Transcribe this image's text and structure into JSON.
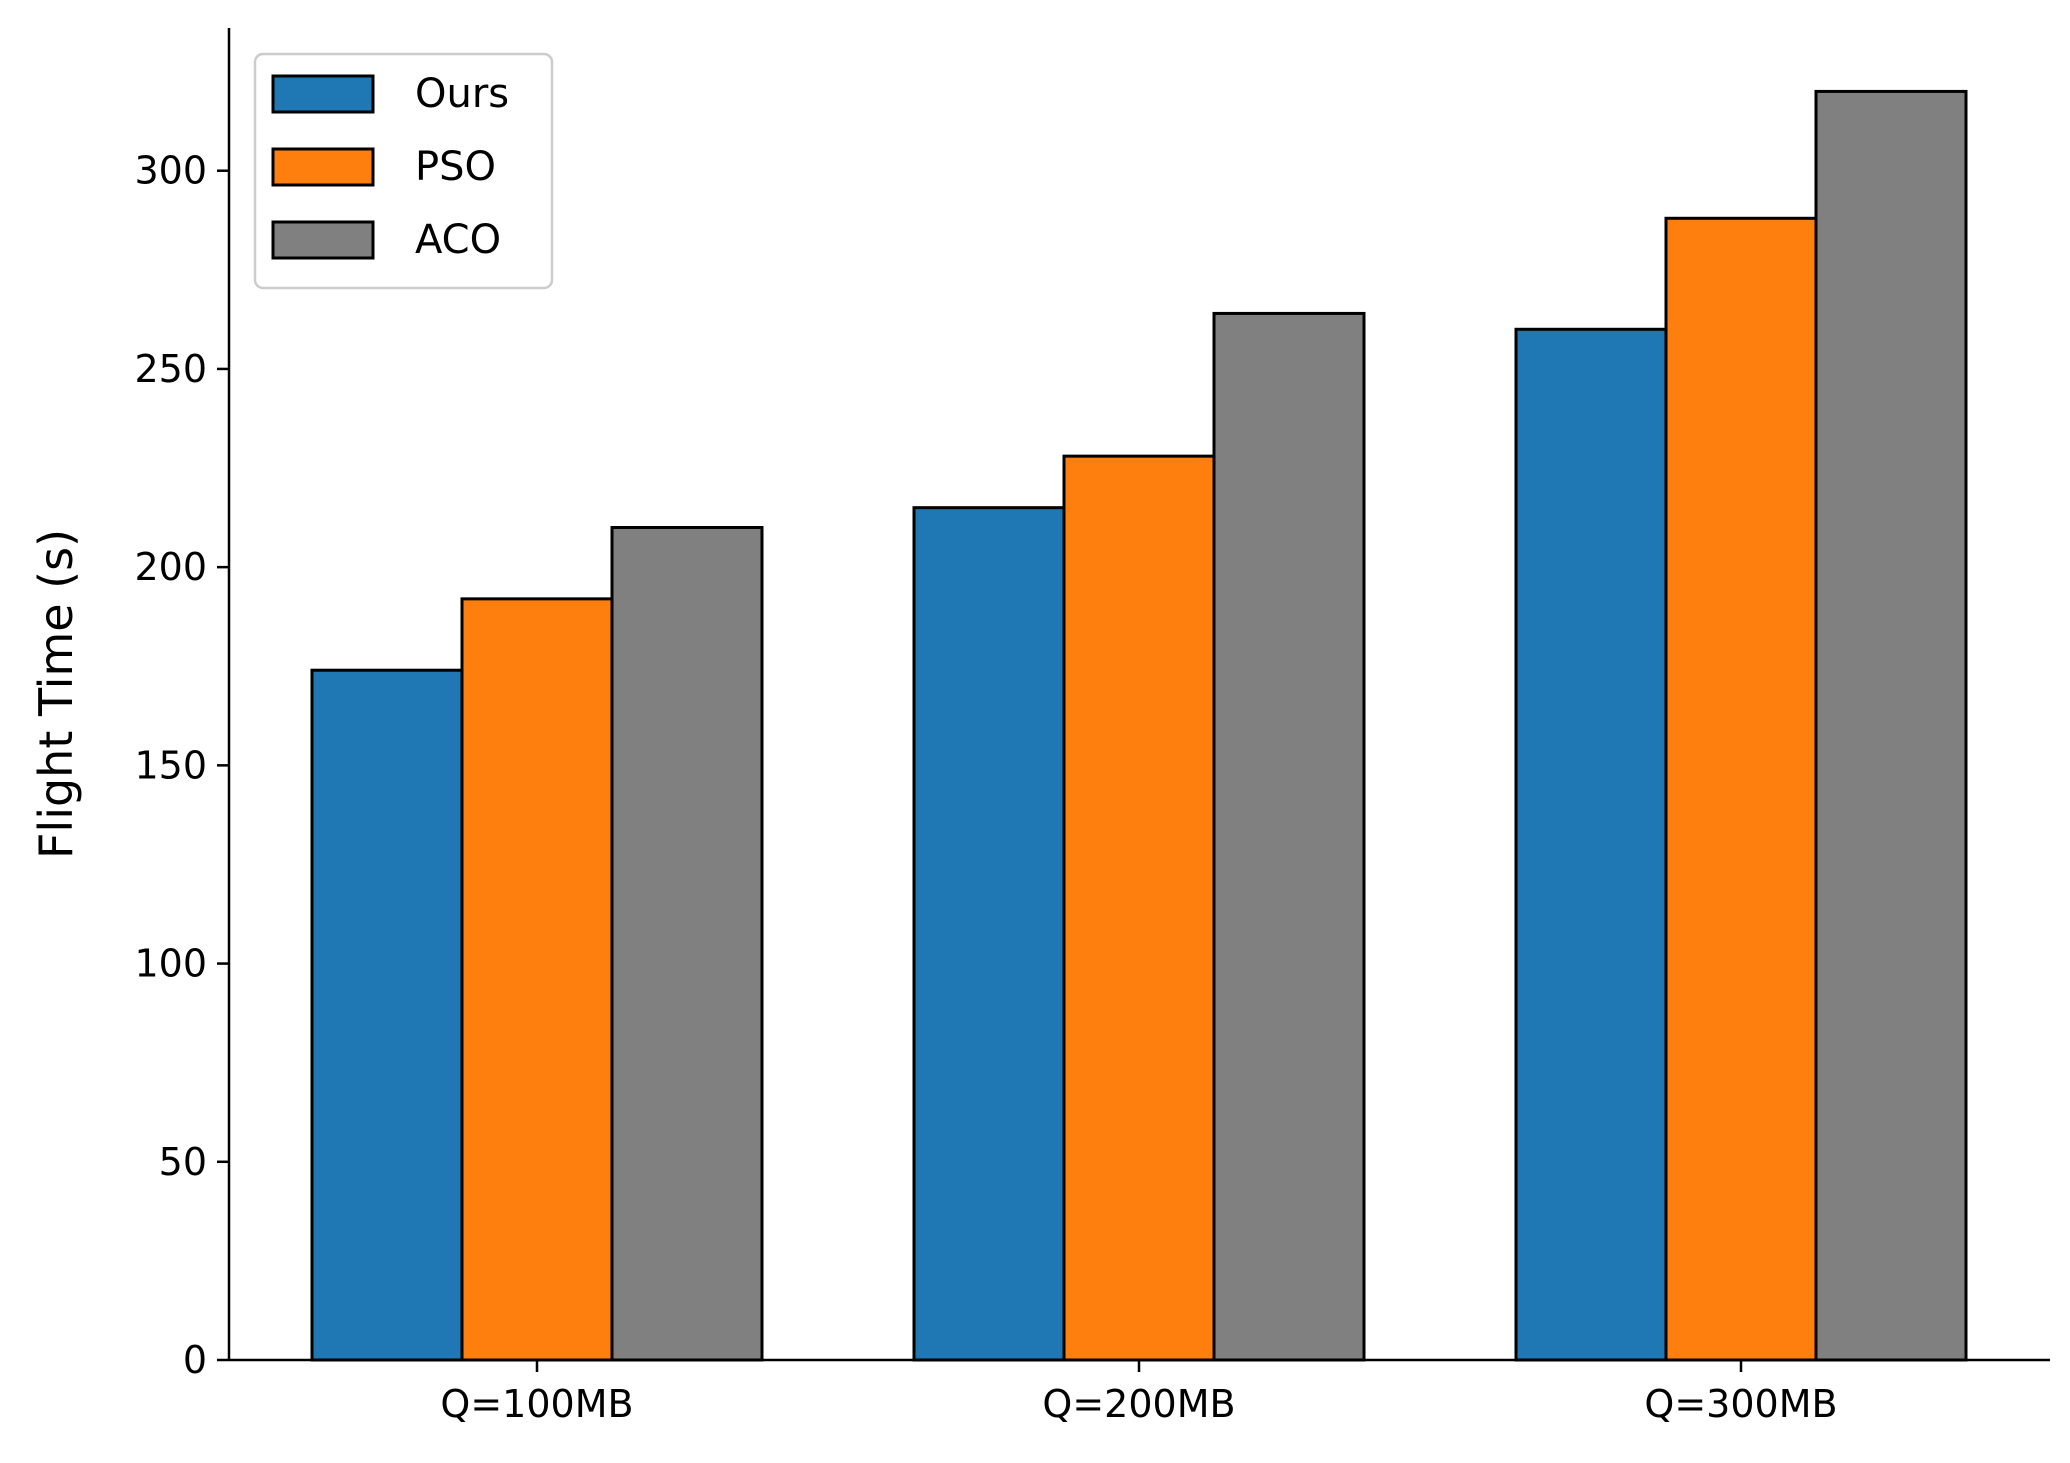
{
  "chart_data": {
    "type": "bar",
    "title": "",
    "xlabel": "",
    "ylabel": "Flight Time (s)",
    "categories": [
      "Q=100MB",
      "Q=200MB",
      "Q=300MB"
    ],
    "series": [
      {
        "name": "Ours",
        "color": "#1f77b4",
        "values": [
          174,
          215,
          260
        ]
      },
      {
        "name": "PSO",
        "color": "#ff7f0e",
        "values": [
          192,
          228,
          288
        ]
      },
      {
        "name": "ACO",
        "color": "#808080",
        "values": [
          210,
          264,
          320
        ]
      }
    ],
    "ylim": [
      0,
      336
    ],
    "yticks": [
      0,
      50,
      100,
      150,
      200,
      250,
      300
    ],
    "grid": false,
    "legend_position": "top-left"
  }
}
